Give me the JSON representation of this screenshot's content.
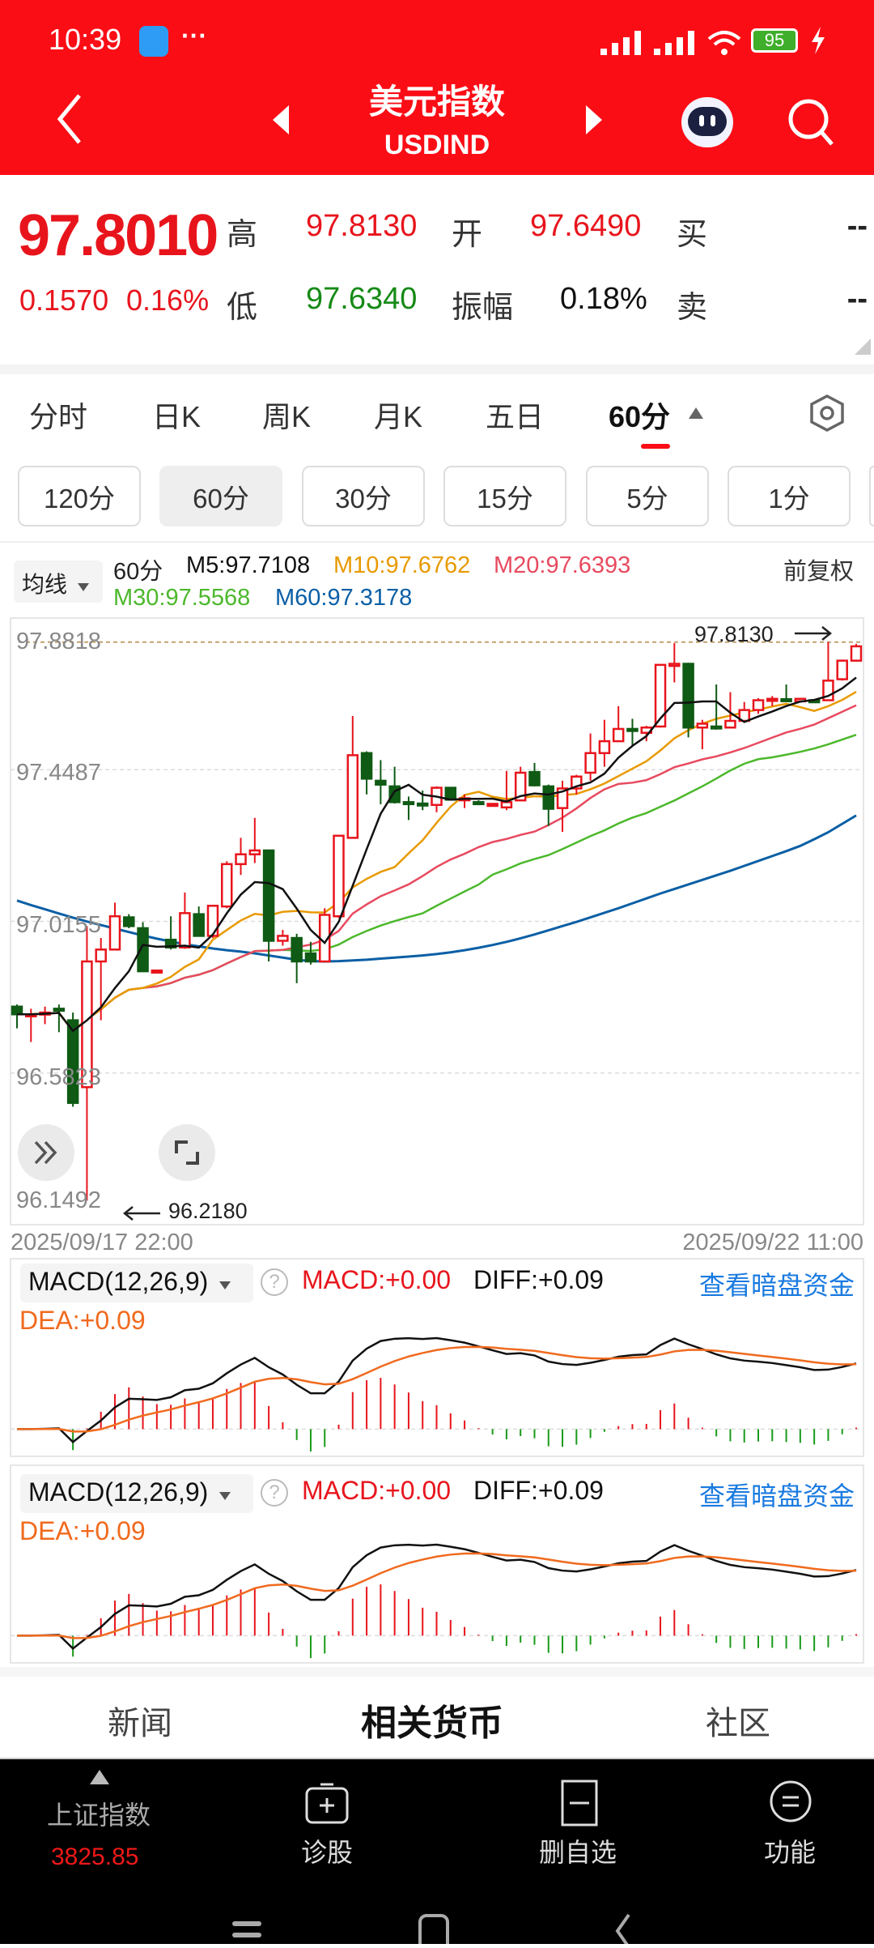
{
  "status_bar": {
    "time": "10:39",
    "dots": "···",
    "battery": "95"
  },
  "header": {
    "title": "美元指数",
    "code": "USDIND"
  },
  "quote": {
    "price": "97.8010",
    "change": "0.1570",
    "change_pct": "0.16%",
    "high_label": "高",
    "high": "97.8130",
    "open_label": "开",
    "open": "97.6490",
    "buy_label": "买",
    "buy": "--",
    "low_label": "低",
    "low": "97.6340",
    "amplitude_label": "振幅",
    "amplitude": "0.18%",
    "sell_label": "卖",
    "sell": "--"
  },
  "period_tabs": [
    {
      "label": "分时"
    },
    {
      "label": "日K"
    },
    {
      "label": "周K"
    },
    {
      "label": "月K"
    },
    {
      "label": "五日"
    },
    {
      "label": "60分",
      "active": true
    }
  ],
  "sub_periods": [
    {
      "label": "120分"
    },
    {
      "label": "60分",
      "selected": true
    },
    {
      "label": "30分"
    },
    {
      "label": "15分"
    },
    {
      "label": "5分"
    },
    {
      "label": "1分"
    }
  ],
  "ma_legend": {
    "selector": "均线",
    "period": "60分",
    "m5": "M5:97.7108",
    "m10": "M10:97.6762",
    "m20": "M20:97.6393",
    "m30": "M30:97.5568",
    "m60": "M60:97.3178",
    "adjust": "前复权"
  },
  "colors": {
    "up": "#e8141c",
    "down": "#0f5a14",
    "m5": "#111111",
    "m10": "#e89a00",
    "m20": "#e84a5f",
    "m30": "#4cb82c",
    "m60": "#0b5fa5",
    "diff": "#111111",
    "dea": "#f06a1e",
    "accent": "#fb0d16",
    "link": "#1a7ae0"
  },
  "chart_data": {
    "type": "candlestick",
    "yticks": [
      "97.8818",
      "97.4487",
      "97.0155",
      "96.5823",
      "96.1492"
    ],
    "ylim": [
      96.1492,
      97.8818
    ],
    "x_start_label": "2025/09/17 22:00",
    "x_end_label": "2025/09/22 11:00",
    "max_annotation": "97.8130",
    "min_annotation": "96.2180",
    "candles": [
      [
        96.772,
        96.75,
        96.778,
        96.71
      ],
      [
        96.746,
        96.75,
        96.766,
        96.671
      ],
      [
        96.75,
        96.755,
        96.772,
        96.722
      ],
      [
        96.766,
        96.761,
        96.778,
        96.699
      ],
      [
        96.733,
        96.497,
        96.755,
        96.486
      ],
      [
        96.542,
        96.901,
        97.002,
        96.218
      ],
      [
        96.901,
        96.935,
        96.968,
        96.733
      ],
      [
        96.935,
        97.03,
        97.069,
        96.935
      ],
      [
        97.027,
        97.002,
        97.036,
        96.996
      ],
      [
        96.996,
        96.873,
        97.013,
        96.873
      ],
      [
        96.871,
        96.875,
        96.875,
        96.871
      ],
      [
        96.963,
        96.941,
        97.03,
        96.935
      ],
      [
        96.941,
        97.039,
        97.098,
        96.937
      ],
      [
        97.036,
        96.974,
        97.058,
        96.974
      ],
      [
        96.974,
        97.06,
        97.06,
        96.968
      ],
      [
        97.058,
        97.179,
        97.187,
        97.053
      ],
      [
        97.179,
        97.207,
        97.254,
        97.148
      ],
      [
        97.207,
        97.218,
        97.311,
        97.182
      ],
      [
        97.218,
        96.96,
        97.218,
        96.901
      ],
      [
        96.96,
        96.974,
        96.991,
        96.946
      ],
      [
        96.968,
        96.901,
        96.98,
        96.839
      ],
      [
        96.924,
        96.901,
        96.957,
        96.892
      ],
      [
        96.901,
        97.034,
        97.053,
        96.901
      ],
      [
        97.03,
        97.26,
        97.26,
        97.025
      ],
      [
        97.254,
        97.49,
        97.602,
        97.254
      ],
      [
        97.496,
        97.423,
        97.501,
        97.378
      ],
      [
        97.417,
        97.406,
        97.476,
        97.35
      ],
      [
        97.401,
        97.356,
        97.457,
        97.352
      ],
      [
        97.356,
        97.352,
        97.372,
        97.305
      ],
      [
        97.352,
        97.348,
        97.389,
        97.333
      ],
      [
        97.348,
        97.397,
        97.401,
        97.327
      ],
      [
        97.397,
        97.363,
        97.397,
        97.361
      ],
      [
        97.363,
        97.367,
        97.378,
        97.339
      ],
      [
        97.356,
        97.352,
        97.361,
        97.35
      ],
      [
        97.349,
        97.351,
        97.352,
        97.348
      ],
      [
        97.341,
        97.356,
        97.445,
        97.333
      ],
      [
        97.361,
        97.44,
        97.457,
        97.361
      ],
      [
        97.442,
        97.404,
        97.468,
        97.401
      ],
      [
        97.401,
        97.337,
        97.406,
        97.288
      ],
      [
        97.339,
        97.395,
        97.417,
        97.271
      ],
      [
        97.395,
        97.429,
        97.434,
        97.378
      ],
      [
        97.44,
        97.496,
        97.552,
        97.417
      ],
      [
        97.496,
        97.53,
        97.591,
        97.457
      ],
      [
        97.53,
        97.565,
        97.63,
        97.53
      ],
      [
        97.565,
        97.563,
        97.594,
        97.518
      ],
      [
        97.554,
        97.569,
        97.574,
        97.53
      ],
      [
        97.572,
        97.748,
        97.748,
        97.569
      ],
      [
        97.745,
        97.751,
        97.81,
        97.698
      ],
      [
        97.751,
        97.569,
        97.754,
        97.541
      ],
      [
        97.569,
        97.58,
        97.591,
        97.507
      ],
      [
        97.572,
        97.569,
        97.692,
        97.563
      ],
      [
        97.569,
        97.588,
        97.67,
        97.569
      ],
      [
        97.588,
        97.619,
        97.642,
        97.586
      ],
      [
        97.619,
        97.647,
        97.653,
        97.608
      ],
      [
        97.647,
        97.651,
        97.659,
        97.63
      ],
      [
        97.65,
        97.647,
        97.692,
        97.644
      ],
      [
        97.644,
        97.651,
        97.653,
        97.642
      ],
      [
        97.647,
        97.644,
        97.65,
        97.642
      ],
      [
        97.647,
        97.703,
        97.813,
        97.647
      ],
      [
        97.707,
        97.76,
        97.763,
        97.703
      ],
      [
        97.76,
        97.801,
        97.808,
        97.757
      ]
    ],
    "ma60": [
      97.075,
      97.062,
      97.05,
      97.038,
      97.026,
      97.015,
      97.005,
      96.995,
      96.985,
      96.975,
      96.966,
      96.958,
      96.95,
      96.944,
      96.938,
      96.933,
      96.929,
      96.924,
      96.918,
      96.912,
      96.906,
      96.902,
      96.901,
      96.902,
      96.904,
      96.906,
      96.909,
      96.912,
      96.915,
      96.918,
      96.922,
      96.927,
      96.933,
      96.94,
      96.948,
      96.957,
      96.967,
      96.978,
      96.99,
      97.002,
      97.014,
      97.027,
      97.04,
      97.053,
      97.067,
      97.081,
      97.095,
      97.108,
      97.121,
      97.134,
      97.147,
      97.16,
      97.174,
      97.188,
      97.202,
      97.216,
      97.231,
      97.25,
      97.27,
      97.294,
      97.318
    ]
  },
  "macd_panels": [
    {
      "title": "MACD(12,26,9)",
      "help": "?",
      "macd": "MACD:+0.00",
      "diff": "DIFF:+0.09",
      "dea": "DEA:+0.09",
      "link": "查看暗盘资金"
    },
    {
      "title": "MACD(12,26,9)",
      "help": "?",
      "macd": "MACD:+0.00",
      "diff": "DIFF:+0.09",
      "dea": "DEA:+0.09",
      "link": "查看暗盘资金"
    }
  ],
  "bottom_tabs": [
    {
      "label": "新闻"
    },
    {
      "label": "相关货币",
      "active": true
    },
    {
      "label": "社区"
    }
  ],
  "bottom_bar": {
    "index_name": "上证指数",
    "index_value": "3825.85",
    "items": [
      {
        "label": "诊股"
      },
      {
        "label": "删自选"
      },
      {
        "label": "功能"
      }
    ]
  }
}
